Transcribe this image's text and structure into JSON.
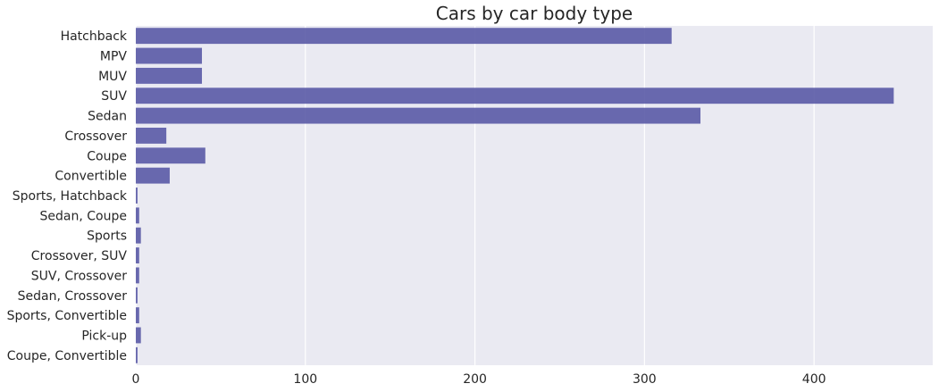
{
  "chart_data": {
    "type": "bar",
    "orientation": "horizontal",
    "title": "Cars by car body type",
    "xlabel": "",
    "ylabel": "",
    "categories": [
      "Hatchback",
      "MPV",
      "MUV",
      "SUV",
      "Sedan",
      "Crossover",
      "Coupe",
      "Convertible",
      "Sports, Hatchback",
      "Sedan, Coupe",
      "Sports",
      "Crossover, SUV",
      "SUV, Crossover",
      "Sedan, Crossover",
      "Sports, Convertible",
      "Pick-up",
      "Coupe, Convertible"
    ],
    "values": [
      316,
      39,
      39,
      447,
      333,
      18,
      41,
      20,
      1,
      2,
      3,
      2,
      2,
      1,
      2,
      3,
      1
    ],
    "xlim": [
      0,
      470
    ],
    "x_ticks": [
      0,
      100,
      200,
      300,
      400
    ],
    "grid": true,
    "colors": {
      "bar": "#5a5aa6",
      "plot_background": "#eaeaf2",
      "grid": "#ffffff",
      "text": "#262626"
    }
  }
}
